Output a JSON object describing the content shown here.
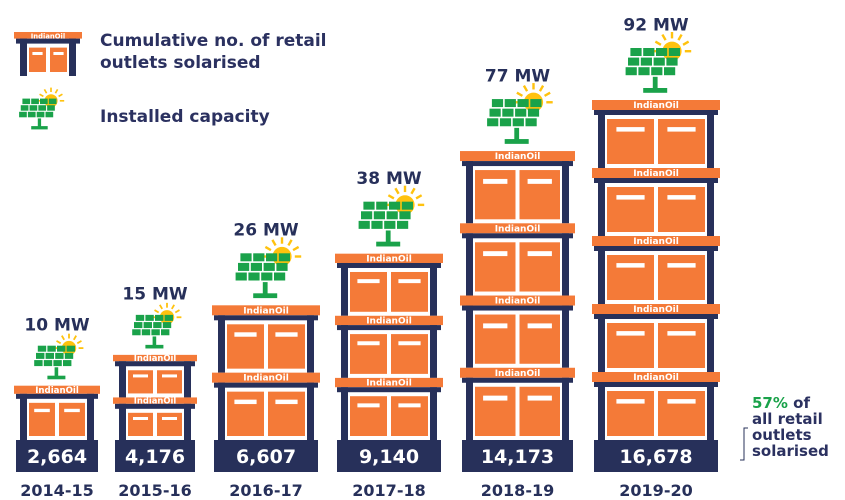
{
  "chart_data": {
    "type": "pictorial",
    "brand": "IndianOil",
    "categories": [
      "2014-15",
      "2015-16",
      "2016-17",
      "2017-18",
      "2018-19",
      "2019-20"
    ],
    "series": [
      {
        "name": "Cumulative no. of retail outlets solarised",
        "color": "#f47a38",
        "values": [
          2664,
          4176,
          6607,
          9140,
          14173,
          16678
        ],
        "value_labels": [
          "2,664",
          "4,176",
          "6,607",
          "9,140",
          "14,173",
          "16,678"
        ]
      },
      {
        "name": "Installed capacity",
        "color": "#1aa24a",
        "values": [
          10,
          15,
          26,
          38,
          77,
          92
        ],
        "value_labels": [
          "10 MW",
          "15 MW",
          "26 MW",
          "38 MW",
          "77 MW",
          "92 MW"
        ]
      }
    ],
    "annotation": {
      "highlight": "57%",
      "lines": [
        "of",
        "all retail",
        "outlets",
        "solarised"
      ]
    }
  }
}
